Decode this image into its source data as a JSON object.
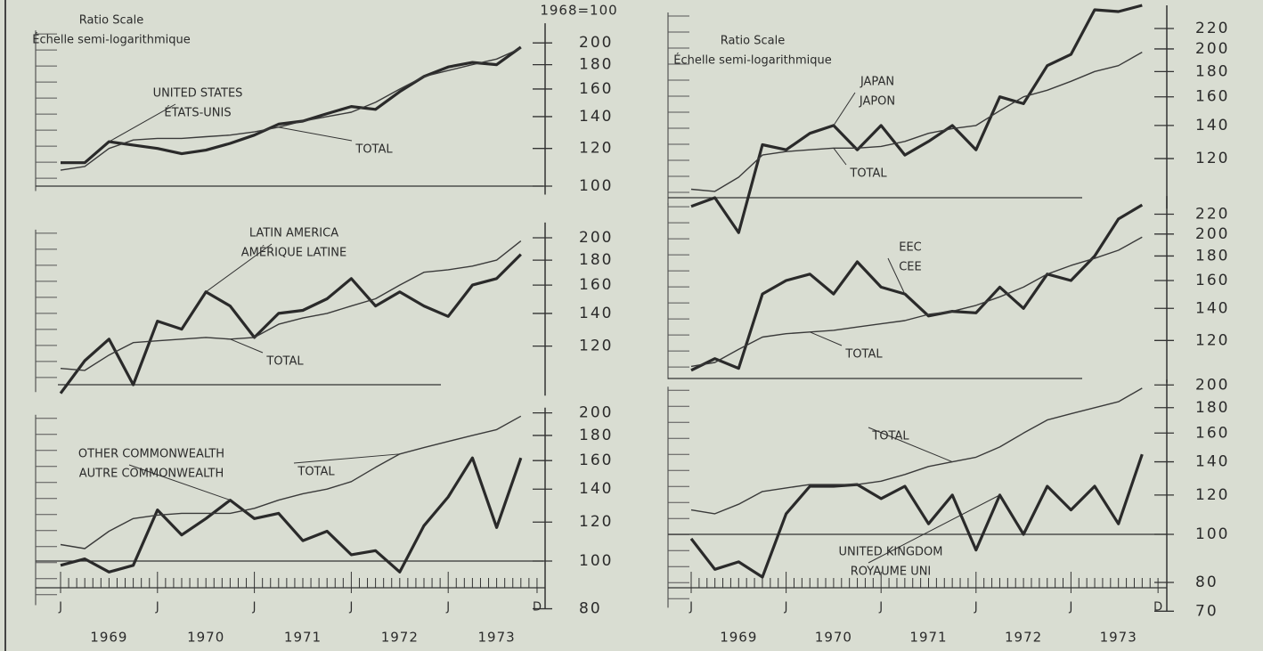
{
  "header": {
    "base": "1968=100"
  },
  "chart_data": [
    {
      "type": "line",
      "log_scale": true,
      "scale_label": "Ratio Scale",
      "scale_label_fr": "Échelle semi-logarithmique",
      "x": [
        1969,
        1969.25,
        1969.5,
        1969.75,
        1970,
        1970.25,
        1970.5,
        1970.75,
        1971,
        1971.25,
        1971.5,
        1971.75,
        1972,
        1972.25,
        1972.5,
        1972.75,
        1973,
        1973.25,
        1973.5,
        1973.75
      ],
      "xlim": [
        1969,
        1973.917
      ],
      "ylim": [
        96,
        220
      ],
      "yticks": [
        100,
        120,
        140,
        160,
        180,
        200
      ],
      "reference_line": 100,
      "series": [
        {
          "name": "UNITED STATES",
          "name_fr": "ÉTATS-UNIS",
          "color": "#2a2a2a",
          "values": [
            112,
            112,
            124,
            122,
            120,
            117,
            119,
            123,
            128,
            135,
            137,
            142,
            147,
            145,
            158,
            170,
            178,
            182,
            180,
            196
          ]
        },
        {
          "name": "TOTAL",
          "color": "#3a3a3a",
          "values": [
            108,
            110,
            120,
            125,
            126,
            126,
            127,
            128,
            130,
            133,
            137,
            140,
            143,
            150,
            160,
            170,
            175,
            180,
            185,
            195
          ]
        }
      ]
    },
    {
      "type": "line",
      "log_scale": true,
      "x": [
        1969,
        1969.25,
        1969.5,
        1969.75,
        1970,
        1970.25,
        1970.5,
        1970.75,
        1971,
        1971.25,
        1971.5,
        1971.75,
        1972,
        1972.25,
        1972.5,
        1972.75,
        1973,
        1973.25,
        1973.5,
        1973.75
      ],
      "xlim": [
        1969,
        1973.917
      ],
      "ylim": [
        95,
        215
      ],
      "yticks": [
        120,
        140,
        160,
        180,
        200
      ],
      "reference_line": 100,
      "series": [
        {
          "name": "LATIN AMERICA",
          "name_fr": "AMÉRIQUE LATINE",
          "color": "#2a2a2a",
          "values": [
            96,
            112,
            124,
            100,
            135,
            130,
            155,
            145,
            125,
            140,
            142,
            150,
            165,
            145,
            155,
            145,
            138,
            160,
            165,
            185
          ]
        },
        {
          "name": "TOTAL",
          "color": "#3a3a3a",
          "values": [
            108,
            107,
            115,
            122,
            123,
            124,
            125,
            124,
            125,
            133,
            137,
            140,
            145,
            150,
            160,
            170,
            172,
            175,
            180,
            197
          ]
        }
      ]
    },
    {
      "type": "line",
      "log_scale": true,
      "x": [
        1969,
        1969.25,
        1969.5,
        1969.75,
        1970,
        1970.25,
        1970.5,
        1970.75,
        1971,
        1971.25,
        1971.5,
        1971.75,
        1972,
        1972.25,
        1972.5,
        1972.75,
        1973,
        1973.25,
        1973.5,
        1973.75
      ],
      "xlim": [
        1969,
        1973.917
      ],
      "ylim": [
        80,
        205
      ],
      "yticks": [
        80,
        100,
        120,
        140,
        160,
        180,
        200
      ],
      "reference_line": 100,
      "xticks": [
        {
          "value": 1969,
          "label": "J"
        },
        {
          "value": 1970,
          "label": "J"
        },
        {
          "value": 1971,
          "label": "J"
        },
        {
          "value": 1972,
          "label": "J"
        },
        {
          "value": 1973,
          "label": "J"
        },
        {
          "value": 1973.917,
          "label": "D"
        }
      ],
      "year_labels": [
        {
          "value": 1969.5,
          "label": "1969"
        },
        {
          "value": 1970.5,
          "label": "1970"
        },
        {
          "value": 1971.5,
          "label": "1971"
        },
        {
          "value": 1972.5,
          "label": "1972"
        },
        {
          "value": 1973.5,
          "label": "1973"
        }
      ],
      "series": [
        {
          "name": "OTHER COMMONWEALTH",
          "name_fr": "AUTRE COMMONWEALTH",
          "color": "#2a2a2a",
          "values": [
            98,
            101,
            95,
            98,
            127,
            113,
            122,
            133,
            122,
            125,
            110,
            115,
            103,
            105,
            95,
            118,
            135,
            162,
            117,
            162
          ]
        },
        {
          "name": "TOTAL",
          "color": "#3a3a3a",
          "values": [
            108,
            106,
            115,
            122,
            124,
            125,
            125,
            125,
            128,
            133,
            137,
            140,
            145,
            155,
            165,
            170,
            175,
            180,
            185,
            197
          ]
        }
      ]
    },
    {
      "type": "line",
      "log_scale": true,
      "scale_label": "Ratio Scale",
      "scale_label_fr": "Échelle semi-logarithmique",
      "x": [
        1969,
        1969.25,
        1969.5,
        1969.75,
        1970,
        1970.25,
        1970.5,
        1970.75,
        1971,
        1971.25,
        1971.5,
        1971.75,
        1972,
        1972.25,
        1972.5,
        1972.75,
        1973,
        1973.25,
        1973.5,
        1973.75
      ],
      "xlim": [
        1969,
        1973.917
      ],
      "ylim": [
        95,
        245
      ],
      "yticks": [
        120,
        140,
        160,
        180,
        200,
        220
      ],
      "reference_line": 100,
      "series": [
        {
          "name": "JAPAN",
          "name_fr": "JAPON",
          "color": "#2a2a2a",
          "values": [
            96,
            100,
            85,
            128,
            125,
            135,
            140,
            125,
            140,
            122,
            130,
            140,
            125,
            160,
            155,
            185,
            195,
            240,
            238,
            245
          ]
        },
        {
          "name": "TOTAL",
          "color": "#3a3a3a",
          "values": [
            104,
            103,
            110,
            122,
            124,
            125,
            126,
            126,
            127,
            130,
            135,
            138,
            140,
            150,
            160,
            165,
            172,
            180,
            185,
            197
          ]
        }
      ]
    },
    {
      "type": "line",
      "log_scale": true,
      "x": [
        1969,
        1969.25,
        1969.5,
        1969.75,
        1970,
        1970.25,
        1970.5,
        1970.75,
        1971,
        1971.25,
        1971.5,
        1971.75,
        1972,
        1972.25,
        1972.5,
        1972.75,
        1973,
        1973.25,
        1973.5,
        1973.75
      ],
      "xlim": [
        1969,
        1973.917
      ],
      "ylim": [
        98,
        240
      ],
      "yticks": [
        120,
        140,
        160,
        180,
        200,
        220
      ],
      "reference_line": 100,
      "series": [
        {
          "name": "EEC",
          "name_fr": "CEE",
          "color": "#2a2a2a",
          "values": [
            104,
            110,
            105,
            150,
            160,
            165,
            150,
            175,
            155,
            150,
            135,
            138,
            137,
            155,
            140,
            165,
            160,
            180,
            215,
            230
          ]
        },
        {
          "name": "TOTAL",
          "color": "#3a3a3a",
          "values": [
            106,
            108,
            115,
            122,
            124,
            125,
            126,
            128,
            130,
            132,
            136,
            138,
            142,
            148,
            155,
            165,
            172,
            178,
            185,
            197
          ]
        }
      ]
    },
    {
      "type": "line",
      "log_scale": true,
      "x": [
        1969,
        1969.25,
        1969.5,
        1969.75,
        1970,
        1970.25,
        1970.5,
        1970.75,
        1971,
        1971.25,
        1971.5,
        1971.75,
        1972,
        1972.25,
        1972.5,
        1972.75,
        1973,
        1973.25,
        1973.5,
        1973.75
      ],
      "xlim": [
        1969,
        1973.917
      ],
      "ylim": [
        70,
        205
      ],
      "yticks": [
        70,
        80,
        100,
        120,
        140,
        160,
        180,
        200
      ],
      "reference_line": 100,
      "xticks": [
        {
          "value": 1969,
          "label": "J"
        },
        {
          "value": 1970,
          "label": "J"
        },
        {
          "value": 1971,
          "label": "J"
        },
        {
          "value": 1972,
          "label": "J"
        },
        {
          "value": 1973,
          "label": "J"
        },
        {
          "value": 1973.917,
          "label": "D"
        }
      ],
      "year_labels": [
        {
          "value": 1969.5,
          "label": "1969"
        },
        {
          "value": 1970.5,
          "label": "1970"
        },
        {
          "value": 1971.5,
          "label": "1971"
        },
        {
          "value": 1972.5,
          "label": "1972"
        },
        {
          "value": 1973.5,
          "label": "1973"
        }
      ],
      "series": [
        {
          "name": "UNITED KINGDOM",
          "name_fr": "ROYAUME UNI",
          "color": "#2a2a2a",
          "values": [
            98,
            85,
            88,
            82,
            110,
            125,
            125,
            126,
            118,
            125,
            105,
            120,
            93,
            120,
            100,
            125,
            112,
            125,
            105,
            145
          ]
        },
        {
          "name": "TOTAL",
          "color": "#3a3a3a",
          "values": [
            112,
            110,
            115,
            122,
            124,
            126,
            126,
            126,
            128,
            132,
            137,
            140,
            143,
            150,
            160,
            170,
            175,
            180,
            185,
            197
          ]
        }
      ]
    }
  ]
}
